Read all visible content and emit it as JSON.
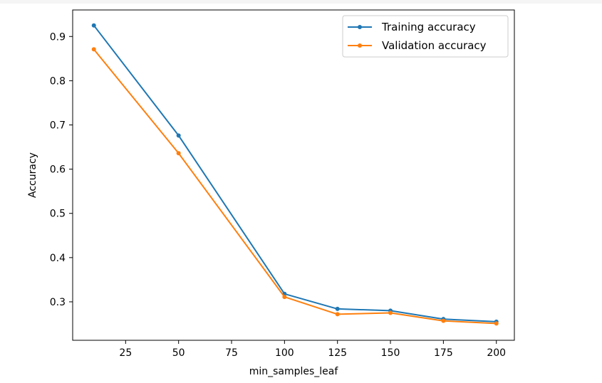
{
  "chart_data": {
    "type": "line",
    "title": "",
    "xlabel": "min_samples_leaf",
    "ylabel": "Accuracy",
    "xlim": [
      0,
      208.5
    ],
    "ylim": [
      0.213,
      0.96
    ],
    "x_ticks": [
      25,
      50,
      75,
      100,
      125,
      150,
      175,
      200
    ],
    "y_ticks": [
      0.3,
      0.4,
      0.5,
      0.6,
      0.7,
      0.8,
      0.9
    ],
    "x_tick_labels": [
      "25",
      "50",
      "75",
      "100",
      "125",
      "150",
      "175",
      "200"
    ],
    "y_tick_labels": [
      "0.3",
      "0.4",
      "0.5",
      "0.6",
      "0.7",
      "0.8",
      "0.9"
    ],
    "grid": false,
    "legend_position": "top-right",
    "x": [
      10,
      50,
      100,
      125,
      150,
      175,
      200
    ],
    "series": [
      {
        "name": "Training accuracy",
        "color": "#1f77b4",
        "marker": "dot",
        "values": [
          0.925,
          0.676,
          0.318,
          0.284,
          0.28,
          0.261,
          0.255
        ]
      },
      {
        "name": "Validation accuracy",
        "color": "#ff7f0e",
        "marker": "dot",
        "values": [
          0.871,
          0.636,
          0.311,
          0.272,
          0.275,
          0.257,
          0.251
        ]
      }
    ]
  }
}
